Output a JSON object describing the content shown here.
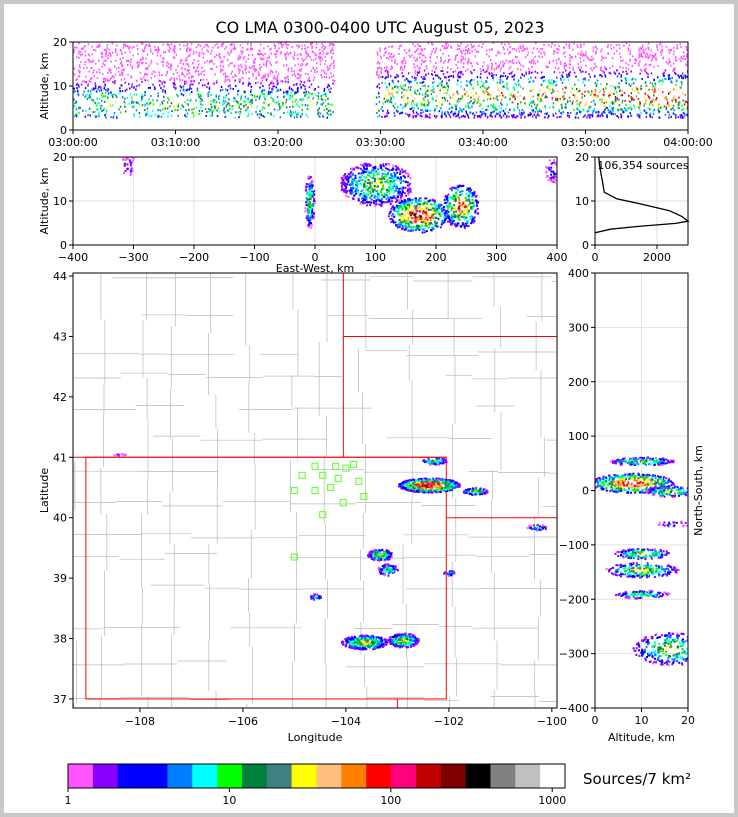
{
  "title": "CO LMA 0300-0400 UTC August 05, 2023",
  "colorbar_label": "Sources/7 km²",
  "colorbar_ticks": [
    "1",
    "10",
    "100",
    "1000"
  ],
  "colorbar_colors": [
    "#ff55ff",
    "#8a00ff",
    "#0000ff",
    "#0000ff",
    "#0080ff",
    "#00ffff",
    "#00ff00",
    "#00803c",
    "#408080",
    "#ffff00",
    "#ffbf80",
    "#ff8000",
    "#ff0000",
    "#ff007f",
    "#c00000",
    "#800000",
    "#000000",
    "#808080",
    "#c0c0c0",
    "#ffffff"
  ],
  "chart_data": [
    {
      "panel": "time-altitude",
      "type": "heatmap",
      "ylabel": "Altitude, km",
      "xlabel": "",
      "x_ticks": [
        "03:00:00",
        "03:10:00",
        "03:20:00",
        "03:30:00",
        "03:40:00",
        "03:50:00",
        "04:00:00"
      ],
      "y_ticks": [
        "0",
        "10",
        "20"
      ],
      "ylim": [
        0,
        20
      ],
      "data_gap": [
        "03:25:30",
        "03:29:30"
      ]
    },
    {
      "panel": "eastwest-altitude",
      "type": "heatmap",
      "xlabel": "East-West, km",
      "ylabel": "Altitude, km",
      "xlim": [
        -400,
        400
      ],
      "ylim": [
        0,
        20
      ],
      "x_ticks": [
        "−400",
        "−300",
        "−200",
        "−100",
        "0",
        "100",
        "200",
        "300",
        "400"
      ],
      "y_ticks": [
        "0",
        "10",
        "20"
      ]
    },
    {
      "panel": "altitude-histogram",
      "type": "line",
      "annotation": "106,354 sources",
      "x_ticks": [
        "0",
        "2000"
      ],
      "y_ticks": [
        "0",
        "10",
        "20"
      ],
      "xlim": [
        0,
        3000
      ],
      "ylim": [
        0,
        20
      ],
      "profile": [
        [
          0,
          2.8
        ],
        [
          500,
          3.6
        ],
        [
          1500,
          4.3
        ],
        [
          2600,
          4.9
        ],
        [
          3000,
          5.4
        ],
        [
          2800,
          6.5
        ],
        [
          2400,
          7.8
        ],
        [
          1500,
          9.3
        ],
        [
          700,
          10.5
        ],
        [
          300,
          12
        ],
        [
          250,
          14
        ],
        [
          200,
          16
        ],
        [
          150,
          18
        ],
        [
          120,
          20
        ]
      ]
    },
    {
      "panel": "plan-view",
      "type": "scatter",
      "xlabel": "Longitude",
      "ylabel": "Latitude",
      "xlim": [
        -109.3,
        -99.9
      ],
      "ylim": [
        36.85,
        44.05
      ],
      "x_ticks": [
        "−108",
        "−106",
        "−104",
        "−102",
        "−100"
      ],
      "y_ticks": [
        "37",
        "38",
        "39",
        "40",
        "41",
        "42",
        "43",
        "44"
      ],
      "stations": [
        [
          -104.85,
          40.7
        ],
        [
          -104.6,
          40.85
        ],
        [
          -104.2,
          40.85
        ],
        [
          -104.0,
          40.82
        ],
        [
          -103.85,
          40.88
        ],
        [
          -104.45,
          40.7
        ],
        [
          -104.15,
          40.65
        ],
        [
          -103.75,
          40.6
        ],
        [
          -105.0,
          40.45
        ],
        [
          -104.6,
          40.45
        ],
        [
          -104.3,
          40.5
        ],
        [
          -104.05,
          40.25
        ],
        [
          -103.65,
          40.35
        ],
        [
          -104.45,
          40.05
        ],
        [
          -105.0,
          39.35
        ]
      ]
    },
    {
      "panel": "altitude-northsouth",
      "type": "heatmap",
      "xlabel": "Altitude, km",
      "ylabel": "North-South, km",
      "xlim": [
        0,
        20
      ],
      "ylim": [
        -400,
        400
      ],
      "x_ticks": [
        "0",
        "10",
        "20"
      ],
      "y_ticks": [
        "−400",
        "−300",
        "−200",
        "−100",
        "0",
        "100",
        "200",
        "300",
        "400"
      ]
    }
  ]
}
